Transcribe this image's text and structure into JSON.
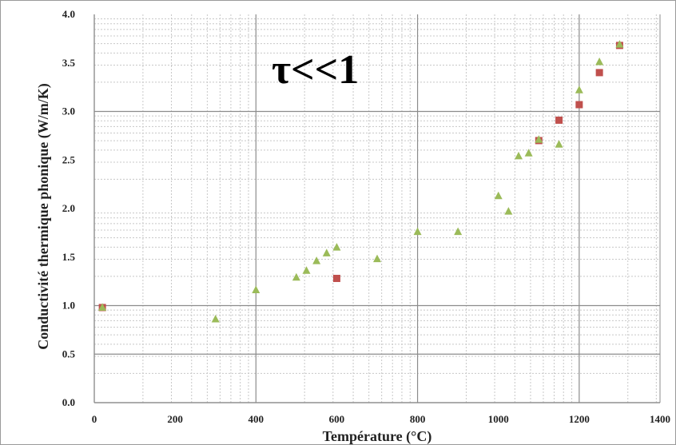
{
  "chart_data": {
    "type": "scatter",
    "title": "",
    "annotation": "τ<<1",
    "xlabel": "Température (°C)",
    "ylabel": "Conductivité thermique phonique (W/m/K)",
    "xlim": [
      0,
      1400
    ],
    "ylim": [
      0,
      4.0
    ],
    "xticks": [
      "0",
      "200",
      "400",
      "600",
      "800",
      "1000",
      "1200",
      "1400"
    ],
    "yticks": [
      "0.0",
      "0.5",
      "1.0",
      "1.5",
      "2.0",
      "2.5",
      "3.0",
      "3.5",
      "4.0"
    ],
    "grid": true,
    "legend": "none",
    "series": [
      {
        "marker": "square",
        "color": "#c0504d",
        "points": [
          {
            "x": 20,
            "y": 0.98
          },
          {
            "x": 600,
            "y": 1.28
          },
          {
            "x": 1100,
            "y": 2.7
          },
          {
            "x": 1150,
            "y": 2.91
          },
          {
            "x": 1200,
            "y": 3.07
          },
          {
            "x": 1250,
            "y": 3.4
          },
          {
            "x": 1300,
            "y": 3.68
          }
        ]
      },
      {
        "marker": "triangle",
        "color": "#9bbb59",
        "points": [
          {
            "x": 20,
            "y": 0.98
          },
          {
            "x": 300,
            "y": 0.86
          },
          {
            "x": 400,
            "y": 1.16
          },
          {
            "x": 500,
            "y": 1.29
          },
          {
            "x": 525,
            "y": 1.36
          },
          {
            "x": 550,
            "y": 1.46
          },
          {
            "x": 575,
            "y": 1.54
          },
          {
            "x": 600,
            "y": 1.6
          },
          {
            "x": 700,
            "y": 1.48
          },
          {
            "x": 800,
            "y": 1.76
          },
          {
            "x": 900,
            "y": 1.76
          },
          {
            "x": 1000,
            "y": 2.13
          },
          {
            "x": 1025,
            "y": 1.97
          },
          {
            "x": 1050,
            "y": 2.54
          },
          {
            "x": 1075,
            "y": 2.57
          },
          {
            "x": 1100,
            "y": 2.71
          },
          {
            "x": 1150,
            "y": 2.66
          },
          {
            "x": 1200,
            "y": 3.22
          },
          {
            "x": 1250,
            "y": 3.51
          },
          {
            "x": 1300,
            "y": 3.69
          }
        ]
      }
    ]
  }
}
